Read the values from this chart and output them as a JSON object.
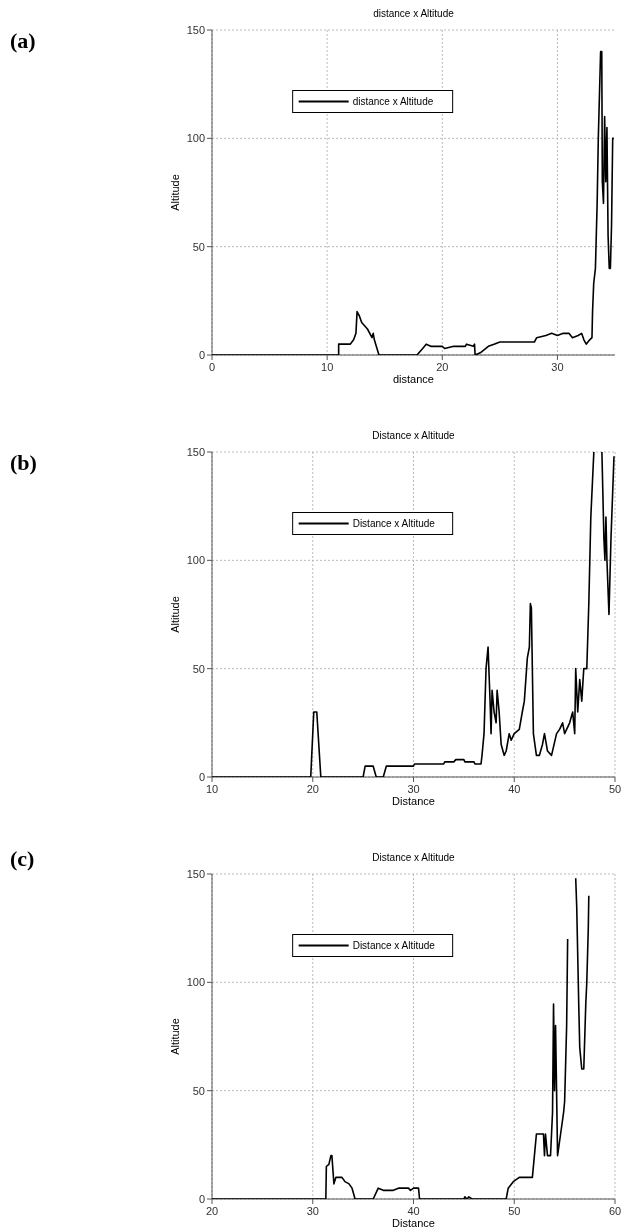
{
  "chart_data": [
    {
      "type": "line",
      "title": "distance x Altitude",
      "xlabel": "distance",
      "ylabel": "Altitude",
      "annotations": [
        "(a)"
      ],
      "xlim": [
        0,
        35
      ],
      "xticks": [
        0,
        10,
        20,
        30
      ],
      "ylim": [
        0,
        150
      ],
      "yticks": [
        0,
        50,
        100,
        150
      ],
      "grid": true,
      "legend": "top left",
      "series": [
        {
          "name": "distance x Altitude",
          "color": "#000000",
          "x": [
            0,
            11,
            11,
            12,
            12.3,
            12.5,
            12.6,
            12.8,
            13,
            13.5,
            13.9,
            14,
            14.1,
            14.5,
            17.8,
            18.3,
            18.6,
            19,
            20,
            20.2,
            21,
            22,
            22.1,
            22.7,
            22.8,
            22.85,
            23.3,
            24,
            24.5,
            25,
            28,
            28.2,
            29,
            29.5,
            30,
            30.5,
            31,
            31.3,
            31.8,
            32.1,
            32.3,
            32.5,
            32.8,
            33,
            33.05,
            33.15,
            33.3,
            33.45,
            33.55,
            33.7,
            33.75,
            33.85,
            33.9,
            34,
            34.1,
            34.2,
            34.3,
            34.4,
            34.5,
            34.6,
            34.7,
            34.8,
            34.9
          ],
          "values": [
            0,
            0,
            5,
            5,
            7,
            10,
            20,
            18,
            15,
            12,
            8,
            10,
            7,
            0,
            0,
            3,
            5,
            4,
            4,
            3,
            4,
            4,
            5,
            4,
            5,
            0,
            1,
            4,
            5,
            6,
            6,
            8,
            9,
            10,
            9,
            10,
            10,
            8,
            9,
            10,
            7,
            5,
            7,
            8,
            20,
            33,
            40,
            70,
            100,
            130,
            140,
            140,
            80,
            70,
            110,
            80,
            105,
            55,
            40,
            40,
            60,
            100,
            100
          ]
        }
      ]
    },
    {
      "type": "line",
      "title": "Distance x Altitude",
      "xlabel": "Distance",
      "ylabel": "Altitude",
      "annotations": [
        "(b)"
      ],
      "xlim": [
        10,
        50
      ],
      "xticks": [
        10,
        20,
        30,
        40,
        50
      ],
      "ylim": [
        0,
        150
      ],
      "yticks": [
        0,
        50,
        100,
        150
      ],
      "grid": true,
      "legend": "top left",
      "series": [
        {
          "name": "Distance x Altitude",
          "color": "#000000",
          "x": [
            10,
            19.8,
            20.1,
            20.4,
            20.8,
            25,
            25.2,
            26,
            26.3,
            27,
            27.3,
            30,
            30.1,
            33,
            33.1,
            34,
            34.2,
            35,
            35.1,
            36,
            36.1,
            36.7,
            36.8,
            37,
            37.2,
            37.4,
            37.6,
            37.7,
            37.8,
            38,
            38.2,
            38.3,
            38.5,
            38.7,
            39,
            39.2,
            39.5,
            39.7,
            40,
            40.5,
            40.8,
            41,
            41.3,
            41.5,
            41.6,
            41.7,
            41.9,
            42.2,
            42.5,
            42.8,
            43,
            43.3,
            43.7,
            44.2,
            44.5,
            44.8,
            45,
            45.5,
            45.8,
            46,
            46.1,
            46.3,
            46.5,
            46.7,
            46.9,
            47.2,
            47.4,
            47.6,
            47.9,
            48.3,
            48.7,
            48.9,
            49,
            49.1,
            49.2,
            49.4,
            49.6,
            49.9
          ],
          "values": [
            0,
            0,
            30,
            30,
            0,
            0,
            5,
            5,
            0,
            0,
            5,
            5,
            6,
            6,
            7,
            7,
            8,
            8,
            7,
            7,
            6,
            6,
            10,
            20,
            50,
            60,
            35,
            20,
            40,
            30,
            25,
            40,
            30,
            15,
            10,
            12,
            20,
            17,
            20,
            22,
            30,
            35,
            55,
            60,
            80,
            78,
            20,
            10,
            10,
            15,
            20,
            12,
            10,
            20,
            22,
            25,
            20,
            25,
            30,
            20,
            50,
            30,
            45,
            35,
            50,
            50,
            80,
            120,
            150,
            null,
            150,
            110,
            100,
            120,
            100,
            75,
            110,
            148
          ]
        }
      ]
    },
    {
      "type": "line",
      "title": "Distance x Altitude",
      "xlabel": "Distance",
      "ylabel": "Altitude",
      "annotations": [
        "(c)"
      ],
      "xlim": [
        20,
        60
      ],
      "xticks": [
        20,
        30,
        40,
        50,
        60
      ],
      "ylim": [
        0,
        150
      ],
      "yticks": [
        0,
        50,
        100,
        150
      ],
      "grid": true,
      "legend": "top left",
      "series": [
        {
          "name": "Distance x Altitude",
          "color": "#000000",
          "x": [
            20,
            31.3,
            31.35,
            31.6,
            31.8,
            31.9,
            32.1,
            32.3,
            32.9,
            33.2,
            33.6,
            33.9,
            34.2,
            36,
            36.5,
            37,
            38,
            38.5,
            39.5,
            39.7,
            40,
            40.5,
            40.6,
            45,
            45.1,
            45.3,
            45.5,
            45.8,
            49.2,
            49.4,
            49.9,
            50.5,
            51.8,
            52,
            52.2,
            52.9,
            53,
            53.1,
            53.3,
            53.6,
            53.8,
            53.9,
            54,
            54.1,
            54.3,
            54.6,
            54.9,
            55,
            55.2,
            55.3,
            55.7,
            56.1,
            56.2,
            56.4,
            56.5,
            56.7,
            56.9,
            57,
            57.1,
            57.2,
            57.35,
            57.4
          ],
          "values": [
            0,
            0,
            15,
            16,
            20,
            20,
            7,
            10,
            10,
            8,
            7,
            5,
            0,
            0,
            5,
            4,
            4,
            5,
            5,
            4,
            5,
            5,
            0,
            0,
            1,
            0,
            1,
            0,
            0,
            5,
            8,
            10,
            10,
            20,
            30,
            30,
            20,
            30,
            20,
            20,
            40,
            90,
            50,
            80,
            20,
            30,
            40,
            45,
            80,
            120,
            null,
            148,
            135,
            90,
            70,
            60,
            60,
            75,
            90,
            100,
            125,
            140
          ]
        }
      ]
    }
  ]
}
